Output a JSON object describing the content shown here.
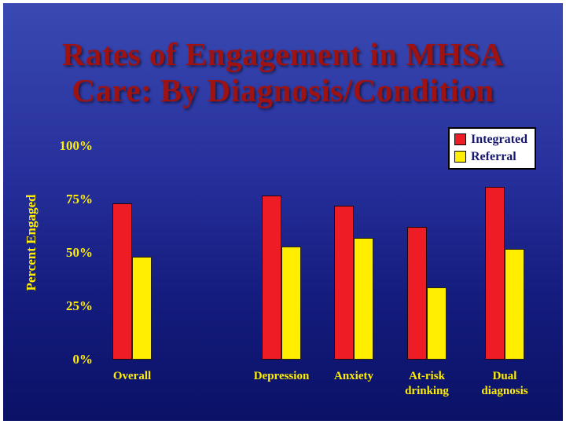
{
  "slide": {
    "title_line1": "Rates of Engagement in MHSA",
    "title_line2": "Care: By Diagnosis/Condition"
  },
  "chart_data": {
    "type": "bar",
    "title": "Rates of Engagement in MHSA Care: By Diagnosis/Condition",
    "xlabel": "",
    "ylabel": "Percent Engaged",
    "ylim": [
      0,
      100
    ],
    "ytick_labels": [
      "100%",
      "75%",
      "50%",
      "25%",
      "0%"
    ],
    "grid": false,
    "legend_position": "top-right",
    "categories": [
      "Overall",
      "Depression",
      "Anxiety",
      "At-risk\ndrinking",
      "Dual\ndiagnosis"
    ],
    "series": [
      {
        "name": "Integrated",
        "color": "#ee1c24",
        "values": [
          73,
          77,
          72,
          62,
          81
        ]
      },
      {
        "name": "Referral",
        "color": "#ffee00",
        "values": [
          48,
          53,
          57,
          34,
          52
        ]
      }
    ]
  },
  "colors": {
    "background_top": "#3a4ab2",
    "background_bottom": "#0a1166",
    "title_text": "#9e1212",
    "axis_text": "#ffee00",
    "legend_text": "#17176e",
    "legend_background": "#ffffff"
  }
}
